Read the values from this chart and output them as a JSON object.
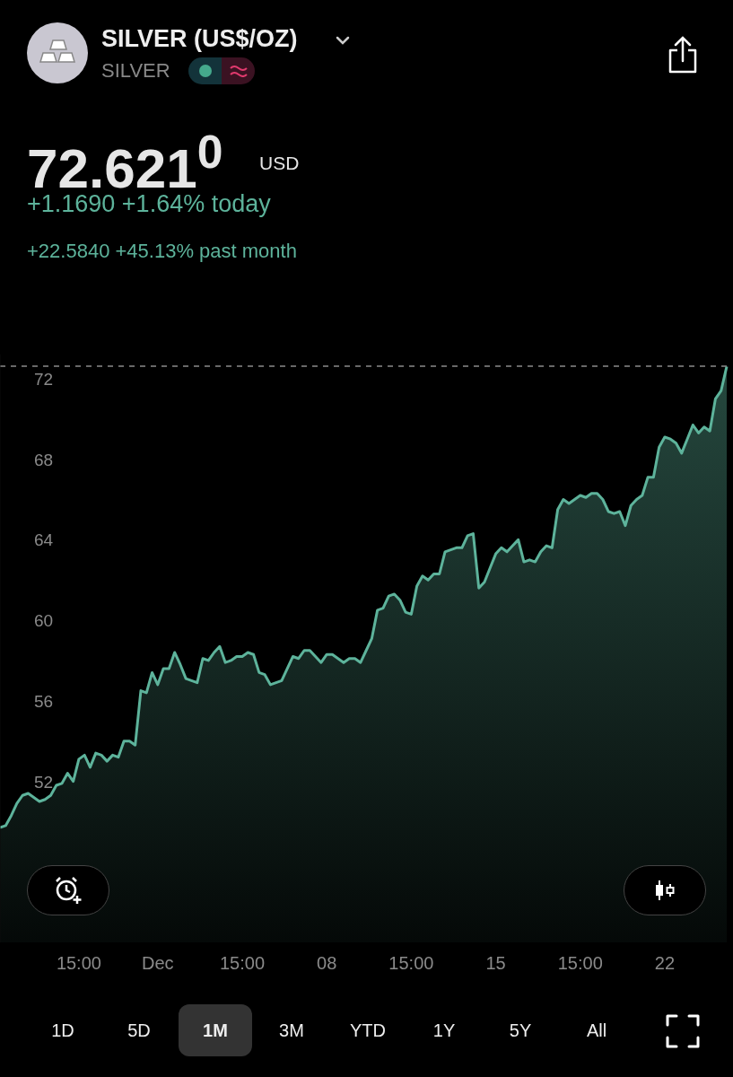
{
  "chart_data": {
    "type": "area",
    "title": "SILVER (US$/OZ)",
    "subtitle": "SILVER",
    "annotations": [
      "72.621$^{0}$",
      "USD",
      "+1.1690 +1.64% today",
      "+22.5840 +45.13% past month",
      "1D",
      "5D",
      "1M",
      "3M",
      "YTD",
      "1Y",
      "5Y",
      "All"
    ],
    "categories": [
      null,
      null,
      null,
      null,
      null,
      null,
      null,
      null,
      null,
      null,
      null,
      null,
      null,
      null,
      "15:00",
      null,
      null,
      null,
      null,
      null,
      null,
      null,
      null,
      null,
      null,
      null,
      null,
      null,
      "Dec",
      null,
      null,
      null,
      null,
      null,
      null,
      null,
      null,
      null,
      null,
      null,
      null,
      null,
      null,
      "15:00",
      null,
      null,
      null,
      null,
      null,
      null,
      null,
      null,
      null,
      null,
      null,
      null,
      null,
      null,
      "08",
      null,
      null,
      null,
      null,
      null,
      null,
      null,
      null,
      null,
      null,
      null,
      null,
      null,
      null,
      "15:00",
      null,
      null,
      null,
      null,
      null,
      null,
      null,
      null,
      null,
      null,
      null,
      null,
      null,
      null,
      "15",
      null,
      null,
      null,
      null,
      null,
      null,
      null,
      null,
      null,
      null,
      null,
      null,
      null,
      null,
      "15:00",
      null,
      null,
      null,
      null,
      null,
      null,
      null,
      null,
      null,
      null,
      null,
      null,
      null,
      null,
      "22",
      null,
      null,
      null,
      null,
      null,
      null,
      null,
      null,
      null,
      null,
      null
    ],
    "values": [
      49.7,
      49.8,
      50.3,
      50.9,
      51.3,
      51.4,
      51.2,
      51.0,
      51.1,
      51.3,
      51.8,
      51.9,
      52.4,
      52.0,
      53.1,
      53.3,
      52.7,
      53.4,
      53.3,
      53.0,
      53.3,
      53.2,
      54.0,
      54.0,
      53.8,
      56.5,
      56.4,
      57.4,
      56.8,
      57.6,
      57.6,
      58.4,
      57.8,
      57.1,
      57.0,
      56.9,
      58.1,
      58.0,
      58.4,
      58.7,
      57.9,
      58.0,
      58.2,
      58.2,
      58.4,
      58.3,
      57.4,
      57.3,
      56.8,
      56.9,
      57.0,
      57.6,
      58.2,
      58.1,
      58.5,
      58.5,
      58.2,
      57.9,
      58.3,
      58.3,
      58.1,
      57.9,
      58.1,
      58.1,
      57.9,
      58.5,
      59.1,
      60.5,
      60.6,
      61.2,
      61.3,
      61.0,
      60.4,
      60.3,
      61.7,
      62.2,
      62.0,
      62.3,
      62.3,
      63.4,
      63.5,
      63.6,
      63.6,
      64.2,
      64.3,
      61.6,
      61.9,
      62.6,
      63.3,
      63.6,
      63.4,
      63.7,
      64.0,
      62.9,
      63.0,
      62.9,
      63.4,
      63.7,
      63.6,
      65.5,
      66.0,
      65.8,
      66.0,
      66.2,
      66.1,
      66.3,
      66.3,
      66.0,
      65.4,
      65.3,
      65.4,
      64.7,
      65.7,
      66.0,
      66.2,
      67.1,
      67.1,
      68.6,
      69.1,
      69.0,
      68.8,
      68.3,
      69.0,
      69.7,
      69.3,
      69.6,
      69.4,
      71.0,
      71.4,
      72.6
    ],
    "color": "#5db39b",
    "ylim": [
      44,
      73.2
    ],
    "yticks": [
      52,
      56,
      60,
      64,
      68,
      72
    ],
    "ref_lines": [
      {
        "axis": "y",
        "value": 72.621,
        "color": "#8a8a8a",
        "line_style": "dashed"
      }
    ],
    "grid": false,
    "legend": false,
    "marker": "none",
    "line_style": "solid"
  }
}
